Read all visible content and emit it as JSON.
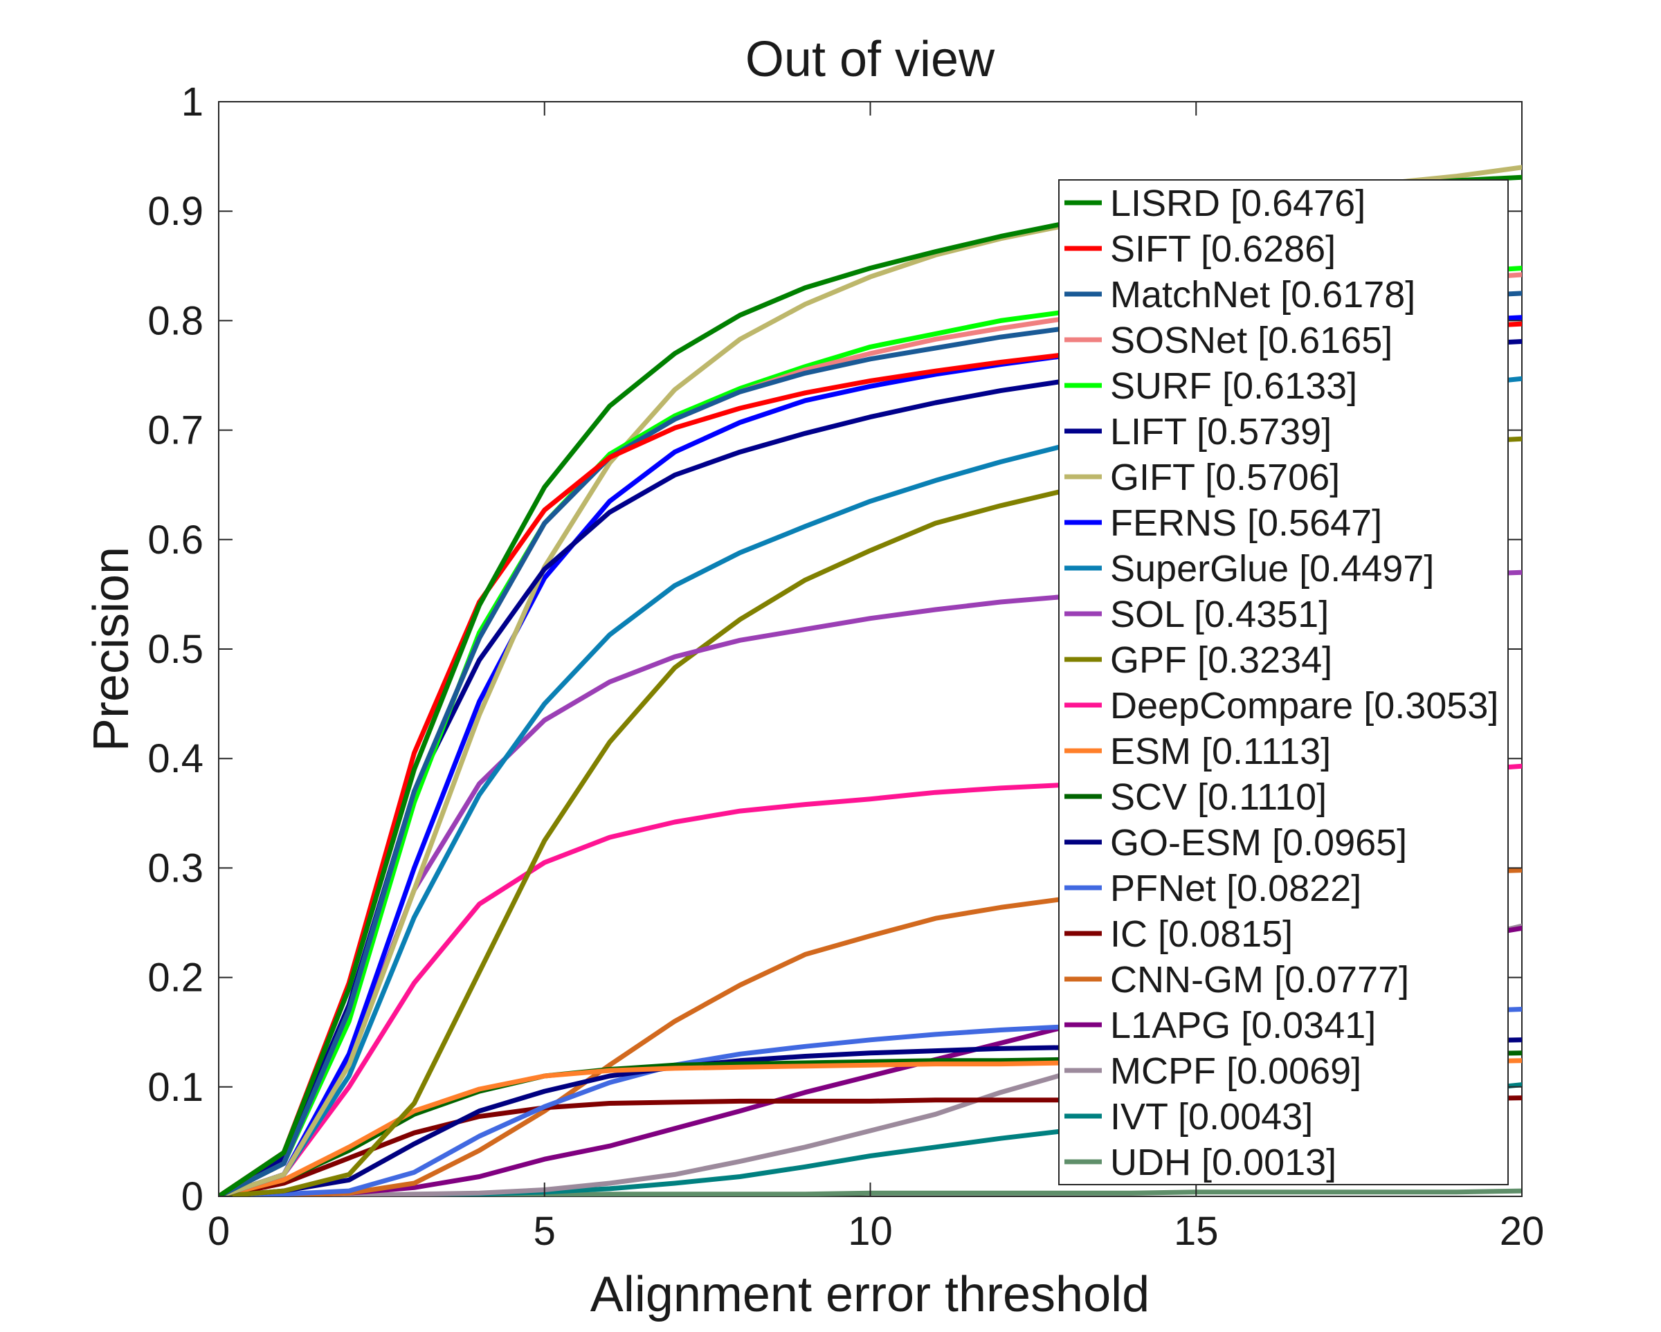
{
  "chart_data": {
    "type": "line",
    "title": "Out of view",
    "xlabel": "Alignment error threshold",
    "ylabel": "Precision",
    "xlim": [
      0,
      20
    ],
    "ylim": [
      0,
      1
    ],
    "xticks": [
      "0",
      "5",
      "10",
      "15",
      "20"
    ],
    "yticks": [
      "0",
      "0.1",
      "0.2",
      "0.3",
      "0.4",
      "0.5",
      "0.6",
      "0.7",
      "0.8",
      "0.9",
      "1"
    ],
    "grid": false,
    "legend_position": "right",
    "x": [
      0,
      1,
      2,
      3,
      4,
      5,
      6,
      7,
      8,
      9,
      10,
      11,
      12,
      13,
      14,
      15,
      16,
      17,
      18,
      19,
      20
    ],
    "series": [
      {
        "name": "LISRD [0.6476]",
        "color": "#008000",
        "values": [
          0,
          0.04,
          0.19,
          0.39,
          0.54,
          0.648,
          0.722,
          0.77,
          0.805,
          0.83,
          0.848,
          0.863,
          0.877,
          0.889,
          0.898,
          0.906,
          0.913,
          0.919,
          0.924,
          0.928,
          0.931
        ]
      },
      {
        "name": "SIFT [0.6286]",
        "color": "#ff0000",
        "values": [
          0,
          0.04,
          0.195,
          0.405,
          0.543,
          0.627,
          0.675,
          0.702,
          0.72,
          0.734,
          0.745,
          0.754,
          0.762,
          0.769,
          0.775,
          0.779,
          0.783,
          0.787,
          0.791,
          0.794,
          0.797
        ]
      },
      {
        "name": "MatchNet [0.6178]",
        "color": "#1a5a96",
        "values": [
          0,
          0.03,
          0.17,
          0.37,
          0.51,
          0.615,
          0.675,
          0.71,
          0.735,
          0.752,
          0.765,
          0.775,
          0.785,
          0.793,
          0.799,
          0.805,
          0.81,
          0.815,
          0.819,
          0.822,
          0.825
        ]
      },
      {
        "name": "SOSNet [0.6165]",
        "color": "#f08080",
        "values": [
          0,
          0.03,
          0.17,
          0.37,
          0.51,
          0.615,
          0.675,
          0.71,
          0.735,
          0.755,
          0.77,
          0.783,
          0.793,
          0.802,
          0.81,
          0.817,
          0.823,
          0.829,
          0.834,
          0.838,
          0.842
        ]
      },
      {
        "name": "SURF [0.6133]",
        "color": "#00ff00",
        "values": [
          0,
          0.03,
          0.16,
          0.36,
          0.515,
          0.615,
          0.678,
          0.713,
          0.738,
          0.758,
          0.776,
          0.788,
          0.8,
          0.808,
          0.816,
          0.823,
          0.829,
          0.835,
          0.84,
          0.844,
          0.848
        ]
      },
      {
        "name": "LIFT [0.5739]",
        "color": "#00008b",
        "values": [
          0,
          0.035,
          0.175,
          0.37,
          0.49,
          0.573,
          0.625,
          0.659,
          0.68,
          0.697,
          0.712,
          0.725,
          0.736,
          0.745,
          0.753,
          0.759,
          0.765,
          0.77,
          0.775,
          0.778,
          0.781
        ]
      },
      {
        "name": "GIFT [0.5706]",
        "color": "#bdb76b",
        "values": [
          0,
          0.02,
          0.12,
          0.28,
          0.44,
          0.575,
          0.67,
          0.737,
          0.783,
          0.815,
          0.84,
          0.86,
          0.875,
          0.887,
          0.897,
          0.905,
          0.913,
          0.92,
          0.926,
          0.932,
          0.94
        ]
      },
      {
        "name": "FERNS [0.5647]",
        "color": "#0000ff",
        "values": [
          0,
          0.02,
          0.13,
          0.3,
          0.452,
          0.565,
          0.635,
          0.68,
          0.707,
          0.727,
          0.74,
          0.751,
          0.76,
          0.768,
          0.775,
          0.781,
          0.787,
          0.792,
          0.796,
          0.8,
          0.803
        ]
      },
      {
        "name": "SuperGlue [0.4497]",
        "color": "#0a80b4",
        "values": [
          0,
          0.02,
          0.11,
          0.255,
          0.367,
          0.45,
          0.513,
          0.558,
          0.588,
          0.612,
          0.635,
          0.654,
          0.671,
          0.686,
          0.698,
          0.709,
          0.718,
          0.727,
          0.734,
          0.741,
          0.747
        ]
      },
      {
        "name": "SOL [0.4351]",
        "color": "#9b3fb5",
        "values": [
          0,
          0.02,
          0.125,
          0.28,
          0.377,
          0.435,
          0.47,
          0.493,
          0.508,
          0.518,
          0.528,
          0.536,
          0.543,
          0.548,
          0.553,
          0.557,
          0.56,
          0.563,
          0.566,
          0.568,
          0.57
        ]
      },
      {
        "name": "GPF [0.3234]",
        "color": "#808000",
        "values": [
          0,
          0.005,
          0.02,
          0.085,
          0.205,
          0.325,
          0.415,
          0.483,
          0.527,
          0.563,
          0.59,
          0.615,
          0.631,
          0.645,
          0.657,
          0.667,
          0.675,
          0.681,
          0.686,
          0.689,
          0.692
        ]
      },
      {
        "name": "DeepCompare [0.3053]",
        "color": "#ff1493",
        "values": [
          0,
          0.02,
          0.1,
          0.195,
          0.267,
          0.305,
          0.328,
          0.342,
          0.352,
          0.358,
          0.363,
          0.369,
          0.373,
          0.376,
          0.379,
          0.381,
          0.383,
          0.385,
          0.387,
          0.389,
          0.393
        ]
      },
      {
        "name": "ESM [0.1113]",
        "color": "#ff7f2a",
        "values": [
          0,
          0.015,
          0.045,
          0.078,
          0.098,
          0.11,
          0.115,
          0.117,
          0.118,
          0.119,
          0.12,
          0.121,
          0.121,
          0.122,
          0.122,
          0.122,
          0.123,
          0.123,
          0.123,
          0.123,
          0.124
        ]
      },
      {
        "name": "SCV [0.1110]",
        "color": "#006400",
        "values": [
          0,
          0.015,
          0.042,
          0.075,
          0.096,
          0.11,
          0.116,
          0.12,
          0.121,
          0.122,
          0.123,
          0.124,
          0.124,
          0.125,
          0.126,
          0.127,
          0.128,
          0.128,
          0.129,
          0.13,
          0.131
        ]
      },
      {
        "name": "GO-ESM [0.0965]",
        "color": "#000080",
        "values": [
          0,
          0.005,
          0.015,
          0.048,
          0.078,
          0.096,
          0.11,
          0.118,
          0.124,
          0.128,
          0.131,
          0.133,
          0.135,
          0.136,
          0.137,
          0.138,
          0.139,
          0.14,
          0.141,
          0.142,
          0.143
        ]
      },
      {
        "name": "PFNet [0.0822]",
        "color": "#4169e1",
        "values": [
          0,
          0.002,
          0.005,
          0.022,
          0.055,
          0.082,
          0.104,
          0.12,
          0.13,
          0.137,
          0.143,
          0.148,
          0.152,
          0.155,
          0.158,
          0.161,
          0.163,
          0.165,
          0.167,
          0.169,
          0.171
        ]
      },
      {
        "name": "IC [0.0815]",
        "color": "#800000",
        "values": [
          0,
          0.012,
          0.035,
          0.058,
          0.073,
          0.081,
          0.085,
          0.086,
          0.087,
          0.087,
          0.087,
          0.088,
          0.088,
          0.088,
          0.088,
          0.089,
          0.089,
          0.089,
          0.089,
          0.089,
          0.09
        ]
      },
      {
        "name": "CNN-GM [0.0777]",
        "color": "#d2691e",
        "values": [
          0,
          0.001,
          0.003,
          0.012,
          0.042,
          0.078,
          0.12,
          0.16,
          0.193,
          0.221,
          0.238,
          0.254,
          0.264,
          0.272,
          0.278,
          0.283,
          0.287,
          0.29,
          0.293,
          0.296,
          0.298
        ]
      },
      {
        "name": "L1APG [0.0341]",
        "color": "#800080",
        "values": [
          0,
          0.001,
          0.003,
          0.008,
          0.018,
          0.034,
          0.046,
          0.062,
          0.078,
          0.095,
          0.11,
          0.125,
          0.14,
          0.155,
          0.17,
          0.185,
          0.2,
          0.215,
          0.225,
          0.235,
          0.245
        ]
      },
      {
        "name": "MCPF [0.0069]",
        "color": "#9c8a9c",
        "values": [
          0,
          0,
          0.001,
          0.002,
          0.003,
          0.006,
          0.012,
          0.02,
          0.032,
          0.045,
          0.06,
          0.075,
          0.095,
          0.112,
          0.135,
          0.158,
          0.18,
          0.2,
          0.217,
          0.233,
          0.247
        ]
      },
      {
        "name": "IVT [0.0043]",
        "color": "#008080",
        "values": [
          0,
          0,
          0,
          0.001,
          0.002,
          0.004,
          0.007,
          0.012,
          0.018,
          0.027,
          0.037,
          0.045,
          0.053,
          0.06,
          0.067,
          0.073,
          0.079,
          0.085,
          0.09,
          0.096,
          0.102
        ]
      },
      {
        "name": "UDH [0.0013]",
        "color": "#5f8f6a",
        "values": [
          0,
          0,
          0,
          0,
          0.001,
          0.001,
          0.002,
          0.002,
          0.002,
          0.002,
          0.003,
          0.003,
          0.003,
          0.003,
          0.003,
          0.004,
          0.004,
          0.004,
          0.004,
          0.004,
          0.005
        ]
      }
    ]
  }
}
